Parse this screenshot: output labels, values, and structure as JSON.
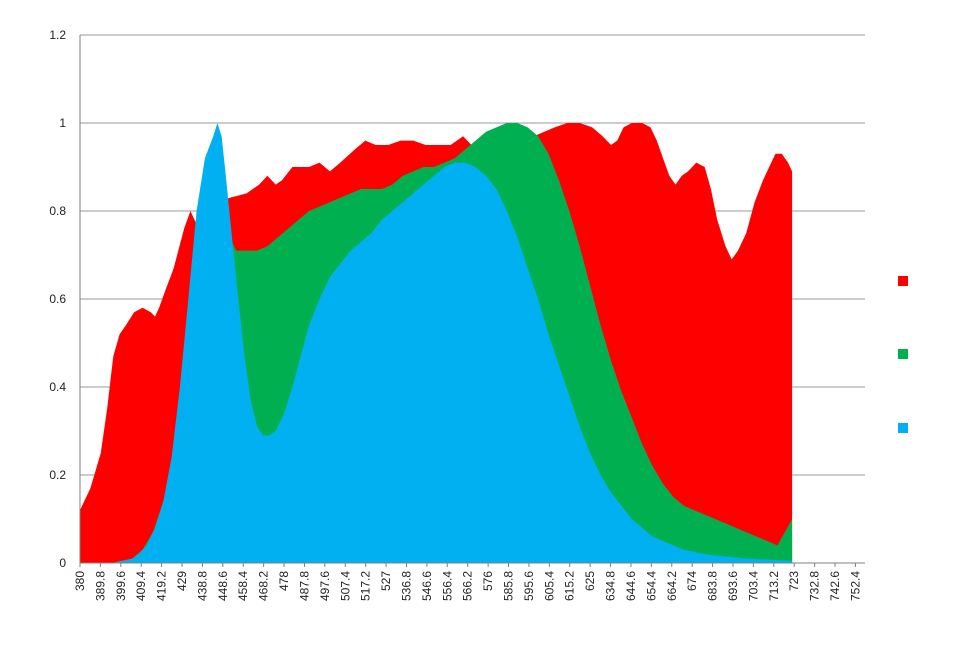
{
  "chart_data": {
    "type": "area",
    "title": "",
    "xlabel": "",
    "ylabel": "",
    "ylim": [
      0,
      1.2
    ],
    "yticks": [
      "0",
      "0.2",
      "0.4",
      "0.6",
      "0.8",
      "1",
      "1.2"
    ],
    "xticks": [
      "380",
      "389.8",
      "399.6",
      "409.4",
      "419.2",
      "429",
      "438.8",
      "448.6",
      "458.4",
      "468.2",
      "478",
      "487.8",
      "497.6",
      "507.4",
      "517.2",
      "527",
      "536.8",
      "546.6",
      "556.4",
      "566.2",
      "576",
      "585.8",
      "595.6",
      "605.4",
      "615.2",
      "625",
      "634.8",
      "644.6",
      "654.4",
      "664.2",
      "674",
      "683.8",
      "693.6",
      "703.4",
      "713.2",
      "723",
      "732.8",
      "742.6",
      "752.4"
    ],
    "grid": true,
    "legend": "right",
    "series": [
      {
        "color": "#ff0000",
        "points": [
          [
            380,
            0.12
          ],
          [
            385,
            0.17
          ],
          [
            390,
            0.25
          ],
          [
            393,
            0.35
          ],
          [
            396,
            0.47
          ],
          [
            399,
            0.52
          ],
          [
            402,
            0.54
          ],
          [
            406,
            0.57
          ],
          [
            410,
            0.58
          ],
          [
            414,
            0.57
          ],
          [
            416,
            0.56
          ],
          [
            418,
            0.58
          ],
          [
            421,
            0.62
          ],
          [
            425,
            0.67
          ],
          [
            430,
            0.76
          ],
          [
            433,
            0.8
          ],
          [
            436,
            0.77
          ],
          [
            440,
            0.8
          ],
          [
            445,
            0.82
          ],
          [
            452,
            0.83
          ],
          [
            460,
            0.84
          ],
          [
            466,
            0.86
          ],
          [
            470,
            0.88
          ],
          [
            474,
            0.86
          ],
          [
            477,
            0.87
          ],
          [
            482,
            0.9
          ],
          [
            490,
            0.9
          ],
          [
            495,
            0.91
          ],
          [
            500,
            0.89
          ],
          [
            505,
            0.91
          ],
          [
            512,
            0.94
          ],
          [
            517,
            0.96
          ],
          [
            522,
            0.95
          ],
          [
            528,
            0.95
          ],
          [
            534,
            0.96
          ],
          [
            540,
            0.96
          ],
          [
            546,
            0.95
          ],
          [
            552,
            0.95
          ],
          [
            558,
            0.95
          ],
          [
            564,
            0.97
          ],
          [
            568,
            0.95
          ],
          [
            572,
            0.93
          ],
          [
            576,
            0.93
          ],
          [
            580,
            0.94
          ],
          [
            586,
            0.97
          ],
          [
            590,
            0.98
          ],
          [
            593,
            0.97
          ],
          [
            598,
            0.97
          ],
          [
            603,
            0.98
          ],
          [
            608,
            0.99
          ],
          [
            614,
            1.0
          ],
          [
            620,
            1.0
          ],
          [
            626,
            0.99
          ],
          [
            631,
            0.97
          ],
          [
            635,
            0.95
          ],
          [
            638,
            0.96
          ],
          [
            641,
            0.99
          ],
          [
            645,
            1.0
          ],
          [
            650,
            1.0
          ],
          [
            654,
            0.99
          ],
          [
            657,
            0.96
          ],
          [
            660,
            0.92
          ],
          [
            663,
            0.88
          ],
          [
            666,
            0.86
          ],
          [
            669,
            0.88
          ],
          [
            672,
            0.89
          ],
          [
            676,
            0.91
          ],
          [
            680,
            0.9
          ],
          [
            683,
            0.85
          ],
          [
            686,
            0.78
          ],
          [
            690,
            0.72
          ],
          [
            693,
            0.69
          ],
          [
            696,
            0.71
          ],
          [
            700,
            0.75
          ],
          [
            704,
            0.82
          ],
          [
            708,
            0.87
          ],
          [
            711,
            0.9
          ],
          [
            714,
            0.93
          ],
          [
            717,
            0.93
          ],
          [
            720,
            0.91
          ],
          [
            722,
            0.89
          ],
          [
            722,
            0.1
          ]
        ]
      },
      {
        "color": "#00b050",
        "points": [
          [
            380,
            0
          ],
          [
            390,
            0
          ],
          [
            400,
            0
          ],
          [
            405,
            0.01
          ],
          [
            410,
            0.03
          ],
          [
            415,
            0.07
          ],
          [
            420,
            0.14
          ],
          [
            425,
            0.24
          ],
          [
            428,
            0.35
          ],
          [
            431,
            0.45
          ],
          [
            434,
            0.53
          ],
          [
            437,
            0.57
          ],
          [
            440,
            0.62
          ],
          [
            444,
            0.7
          ],
          [
            448,
            0.76
          ],
          [
            451,
            0.75
          ],
          [
            455,
            0.71
          ],
          [
            460,
            0.71
          ],
          [
            465,
            0.71
          ],
          [
            470,
            0.72
          ],
          [
            475,
            0.74
          ],
          [
            480,
            0.76
          ],
          [
            485,
            0.78
          ],
          [
            490,
            0.8
          ],
          [
            495,
            0.81
          ],
          [
            500,
            0.82
          ],
          [
            505,
            0.83
          ],
          [
            510,
            0.84
          ],
          [
            515,
            0.85
          ],
          [
            520,
            0.85
          ],
          [
            525,
            0.85
          ],
          [
            530,
            0.86
          ],
          [
            535,
            0.88
          ],
          [
            540,
            0.89
          ],
          [
            545,
            0.9
          ],
          [
            550,
            0.9
          ],
          [
            555,
            0.91
          ],
          [
            560,
            0.92
          ],
          [
            565,
            0.94
          ],
          [
            570,
            0.96
          ],
          [
            575,
            0.98
          ],
          [
            580,
            0.99
          ],
          [
            585,
            1.0
          ],
          [
            590,
            1.0
          ],
          [
            595,
            0.99
          ],
          [
            600,
            0.97
          ],
          [
            605,
            0.93
          ],
          [
            610,
            0.87
          ],
          [
            615,
            0.8
          ],
          [
            620,
            0.72
          ],
          [
            625,
            0.63
          ],
          [
            630,
            0.54
          ],
          [
            635,
            0.46
          ],
          [
            640,
            0.39
          ],
          [
            645,
            0.33
          ],
          [
            650,
            0.27
          ],
          [
            655,
            0.22
          ],
          [
            660,
            0.18
          ],
          [
            665,
            0.15
          ],
          [
            670,
            0.13
          ],
          [
            675,
            0.12
          ],
          [
            680,
            0.11
          ],
          [
            685,
            0.1
          ],
          [
            690,
            0.09
          ],
          [
            695,
            0.08
          ],
          [
            700,
            0.07
          ],
          [
            705,
            0.06
          ],
          [
            710,
            0.05
          ],
          [
            715,
            0.04
          ],
          [
            722,
            0.1
          ]
        ]
      },
      {
        "color": "#00b0f0",
        "points": [
          [
            380,
            0
          ],
          [
            395,
            0
          ],
          [
            400,
            0.005
          ],
          [
            405,
            0.01
          ],
          [
            408,
            0.02
          ],
          [
            412,
            0.04
          ],
          [
            416,
            0.08
          ],
          [
            420,
            0.14
          ],
          [
            424,
            0.24
          ],
          [
            428,
            0.4
          ],
          [
            432,
            0.6
          ],
          [
            436,
            0.8
          ],
          [
            440,
            0.92
          ],
          [
            444,
            0.97
          ],
          [
            446,
            1.0
          ],
          [
            448,
            0.97
          ],
          [
            450,
            0.88
          ],
          [
            453,
            0.74
          ],
          [
            456,
            0.6
          ],
          [
            459,
            0.47
          ],
          [
            462,
            0.37
          ],
          [
            465,
            0.31
          ],
          [
            468,
            0.29
          ],
          [
            471,
            0.29
          ],
          [
            474,
            0.3
          ],
          [
            478,
            0.34
          ],
          [
            482,
            0.4
          ],
          [
            486,
            0.47
          ],
          [
            490,
            0.54
          ],
          [
            495,
            0.6
          ],
          [
            500,
            0.65
          ],
          [
            505,
            0.68
          ],
          [
            510,
            0.71
          ],
          [
            515,
            0.73
          ],
          [
            520,
            0.75
          ],
          [
            525,
            0.78
          ],
          [
            530,
            0.8
          ],
          [
            535,
            0.82
          ],
          [
            540,
            0.84
          ],
          [
            545,
            0.86
          ],
          [
            550,
            0.88
          ],
          [
            555,
            0.9
          ],
          [
            560,
            0.91
          ],
          [
            565,
            0.91
          ],
          [
            570,
            0.9
          ],
          [
            575,
            0.88
          ],
          [
            580,
            0.85
          ],
          [
            585,
            0.8
          ],
          [
            590,
            0.74
          ],
          [
            595,
            0.67
          ],
          [
            600,
            0.6
          ],
          [
            605,
            0.52
          ],
          [
            610,
            0.45
          ],
          [
            615,
            0.38
          ],
          [
            620,
            0.31
          ],
          [
            625,
            0.25
          ],
          [
            630,
            0.2
          ],
          [
            635,
            0.16
          ],
          [
            640,
            0.13
          ],
          [
            645,
            0.1
          ],
          [
            650,
            0.08
          ],
          [
            655,
            0.06
          ],
          [
            660,
            0.05
          ],
          [
            665,
            0.04
          ],
          [
            670,
            0.03
          ],
          [
            675,
            0.025
          ],
          [
            680,
            0.02
          ],
          [
            690,
            0.015
          ],
          [
            700,
            0.01
          ],
          [
            710,
            0.008
          ],
          [
            722,
            0.005
          ]
        ]
      }
    ]
  }
}
